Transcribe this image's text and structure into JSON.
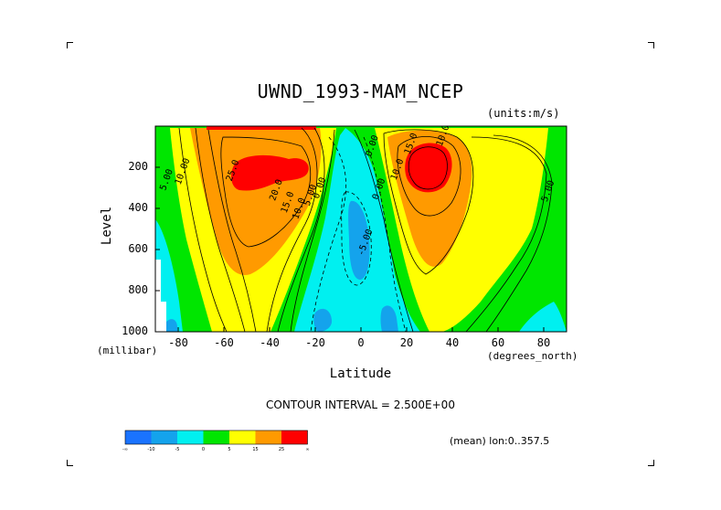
{
  "page": {
    "title": "UWND_1993-MAM_NCEP",
    "units": "(units:m/s)",
    "contour_interval": "CONTOUR INTERVAL = 2.500E+00",
    "mean_lon": "(mean) lon:0..357.5"
  },
  "chart_data": {
    "type": "heatmap",
    "title": "UWND_1993-MAM_NCEP",
    "xlabel": "Latitude",
    "x_unit_label": "(degrees_north)",
    "ylabel": "Level",
    "y_unit_label": "(millibar)",
    "xlim": [
      -90,
      90
    ],
    "ylim": [
      1000,
      0
    ],
    "x_ticks": [
      "-80",
      "-60",
      "-40",
      "-20",
      "0",
      "20",
      "40",
      "60",
      "80"
    ],
    "x_tick_values": [
      -80,
      -60,
      -40,
      -20,
      0,
      20,
      40,
      60,
      80
    ],
    "y_ticks": [
      "200",
      "400",
      "600",
      "800",
      "1000"
    ],
    "y_tick_values": [
      200,
      400,
      600,
      800,
      1000
    ],
    "contour_interval": 2.5,
    "colorbar": {
      "colors": [
        "#1a73ff",
        "#14a3ec",
        "#00f0f0",
        "#00e600",
        "#ffff00",
        "#ff9a00",
        "#ff0000"
      ],
      "tick_labels": [
        "-∞",
        "-10",
        "-5",
        "0",
        "5",
        "15",
        "25",
        "∞"
      ],
      "bin_edges": [
        null,
        -10,
        -5,
        0,
        5,
        15,
        25,
        null
      ]
    },
    "contour_labels": [
      {
        "text": "10.00",
        "lat": -77,
        "lev": 225
      },
      {
        "text": "5.00",
        "lat": -84,
        "lev": 265
      },
      {
        "text": "25.0",
        "lat": -55,
        "lev": 220
      },
      {
        "text": "20.0",
        "lat": -36,
        "lev": 315
      },
      {
        "text": "15.0",
        "lat": -31,
        "lev": 375
      },
      {
        "text": "10.0",
        "lat": -26,
        "lev": 405
      },
      {
        "text": "5.00",
        "lat": -21,
        "lev": 340
      },
      {
        "text": "0.00",
        "lat": -17,
        "lev": 305
      },
      {
        "text": "-5.00",
        "lat": 3,
        "lev": 570
      },
      {
        "text": "0.00",
        "lat": 6,
        "lev": 100
      },
      {
        "text": "10.0",
        "lat": 17,
        "lev": 215
      },
      {
        "text": "0.00",
        "lat": 9,
        "lev": 310
      },
      {
        "text": "15.0",
        "lat": 23,
        "lev": 90
      },
      {
        "text": "10.0",
        "lat": 37,
        "lev": 50
      },
      {
        "text": "5.00",
        "lat": 83,
        "lev": 320
      }
    ],
    "features": [
      {
        "name": "southern-hemisphere-westerly-jet",
        "lat": -40,
        "lev": 230,
        "max_value": 25
      },
      {
        "name": "northern-hemisphere-westerly-jet",
        "lat": 30,
        "lev": 200,
        "max_value": 25
      },
      {
        "name": "tropical-easterlies",
        "lat": 3,
        "lev": 550,
        "min_value": -5
      }
    ]
  }
}
